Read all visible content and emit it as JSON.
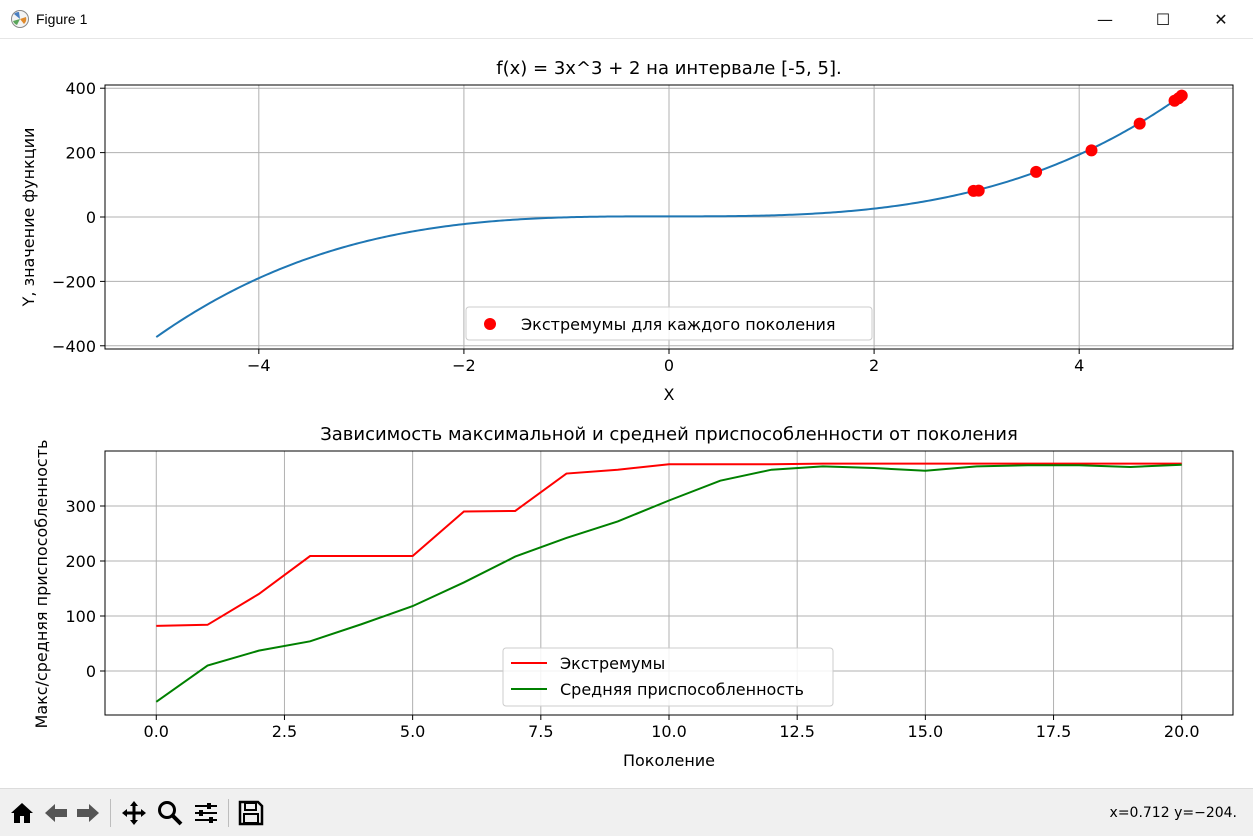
{
  "window": {
    "title": "Figure 1",
    "controls": {
      "minimize": "—",
      "maximize": "☐",
      "close": "✕"
    }
  },
  "toolbar": {
    "tools": [
      {
        "name": "home-icon"
      },
      {
        "name": "back-icon"
      },
      {
        "name": "forward-icon"
      },
      {
        "name": "pan-icon"
      },
      {
        "name": "zoom-icon"
      },
      {
        "name": "configure-subplots-icon"
      },
      {
        "name": "save-icon"
      }
    ],
    "coords": "x=0.712 y=−204."
  },
  "colors": {
    "curve": "#1f77b4",
    "points": "#ff0000",
    "max_line": "#ff0000",
    "avg_line": "#008000",
    "grid": "#b0b0b0"
  },
  "chart_data": [
    {
      "type": "line",
      "title": "f(x) = 3x^3 + 2 на интервале [-5, 5].",
      "xlabel": "X",
      "ylabel": "Y, значение функции",
      "xlim": [
        -5.5,
        5.5
      ],
      "ylim": [
        -410,
        410
      ],
      "xticks": [
        -4,
        -2,
        0,
        2,
        4
      ],
      "xtick_labels": [
        "−4",
        "−2",
        "0",
        "2",
        "4"
      ],
      "yticks": [
        -400,
        -200,
        0,
        200,
        400
      ],
      "ytick_labels": [
        "−400",
        "−200",
        "0",
        "200",
        "400"
      ],
      "grid": true,
      "legend": "lower center",
      "function": {
        "expression": "3x^3 + 2",
        "x_range": [
          -5,
          5
        ]
      },
      "series": [
        {
          "name": "Экстремумы для каждого поколения",
          "kind": "scatter",
          "points": [
            [
              2.97,
              81
            ],
            [
              3.02,
              82
            ],
            [
              3.58,
              140
            ],
            [
              4.12,
              207
            ],
            [
              4.59,
              290
            ],
            [
              4.93,
              361
            ],
            [
              4.97,
              369
            ],
            [
              5.0,
              377
            ]
          ]
        }
      ]
    },
    {
      "type": "line",
      "title": "Зависимость максимальной и средней приспособленности от поколения",
      "xlabel": "Поколение",
      "ylabel": "Макс/средняя приспособленность",
      "xlim": [
        -1,
        21
      ],
      "ylim": [
        -80,
        400
      ],
      "xticks": [
        0,
        2.5,
        5,
        7.5,
        10,
        12.5,
        15,
        17.5,
        20
      ],
      "xtick_labels": [
        "0.0",
        "2.5",
        "5.0",
        "7.5",
        "10.0",
        "12.5",
        "15.0",
        "17.5",
        "20.0"
      ],
      "yticks": [
        0,
        100,
        200,
        300
      ],
      "ytick_labels": [
        "0",
        "100",
        "200",
        "300"
      ],
      "grid": true,
      "legend": "lower center",
      "x": [
        0,
        1,
        2,
        3,
        4,
        5,
        6,
        7,
        8,
        9,
        10,
        11,
        12,
        13,
        14,
        15,
        16,
        17,
        18,
        19,
        20
      ],
      "series": [
        {
          "name": "Экстремумы",
          "values": [
            82,
            84,
            140,
            209,
            209,
            209,
            290,
            291,
            359,
            366,
            376,
            376,
            376,
            377,
            377,
            377,
            377,
            377,
            377,
            377,
            377
          ]
        },
        {
          "name": "Средняя приспособленность",
          "values": [
            -56,
            10,
            37,
            54,
            85,
            118,
            161,
            208,
            242,
            272,
            310,
            346,
            366,
            372,
            369,
            364,
            372,
            374,
            374,
            371,
            375
          ]
        }
      ]
    }
  ]
}
